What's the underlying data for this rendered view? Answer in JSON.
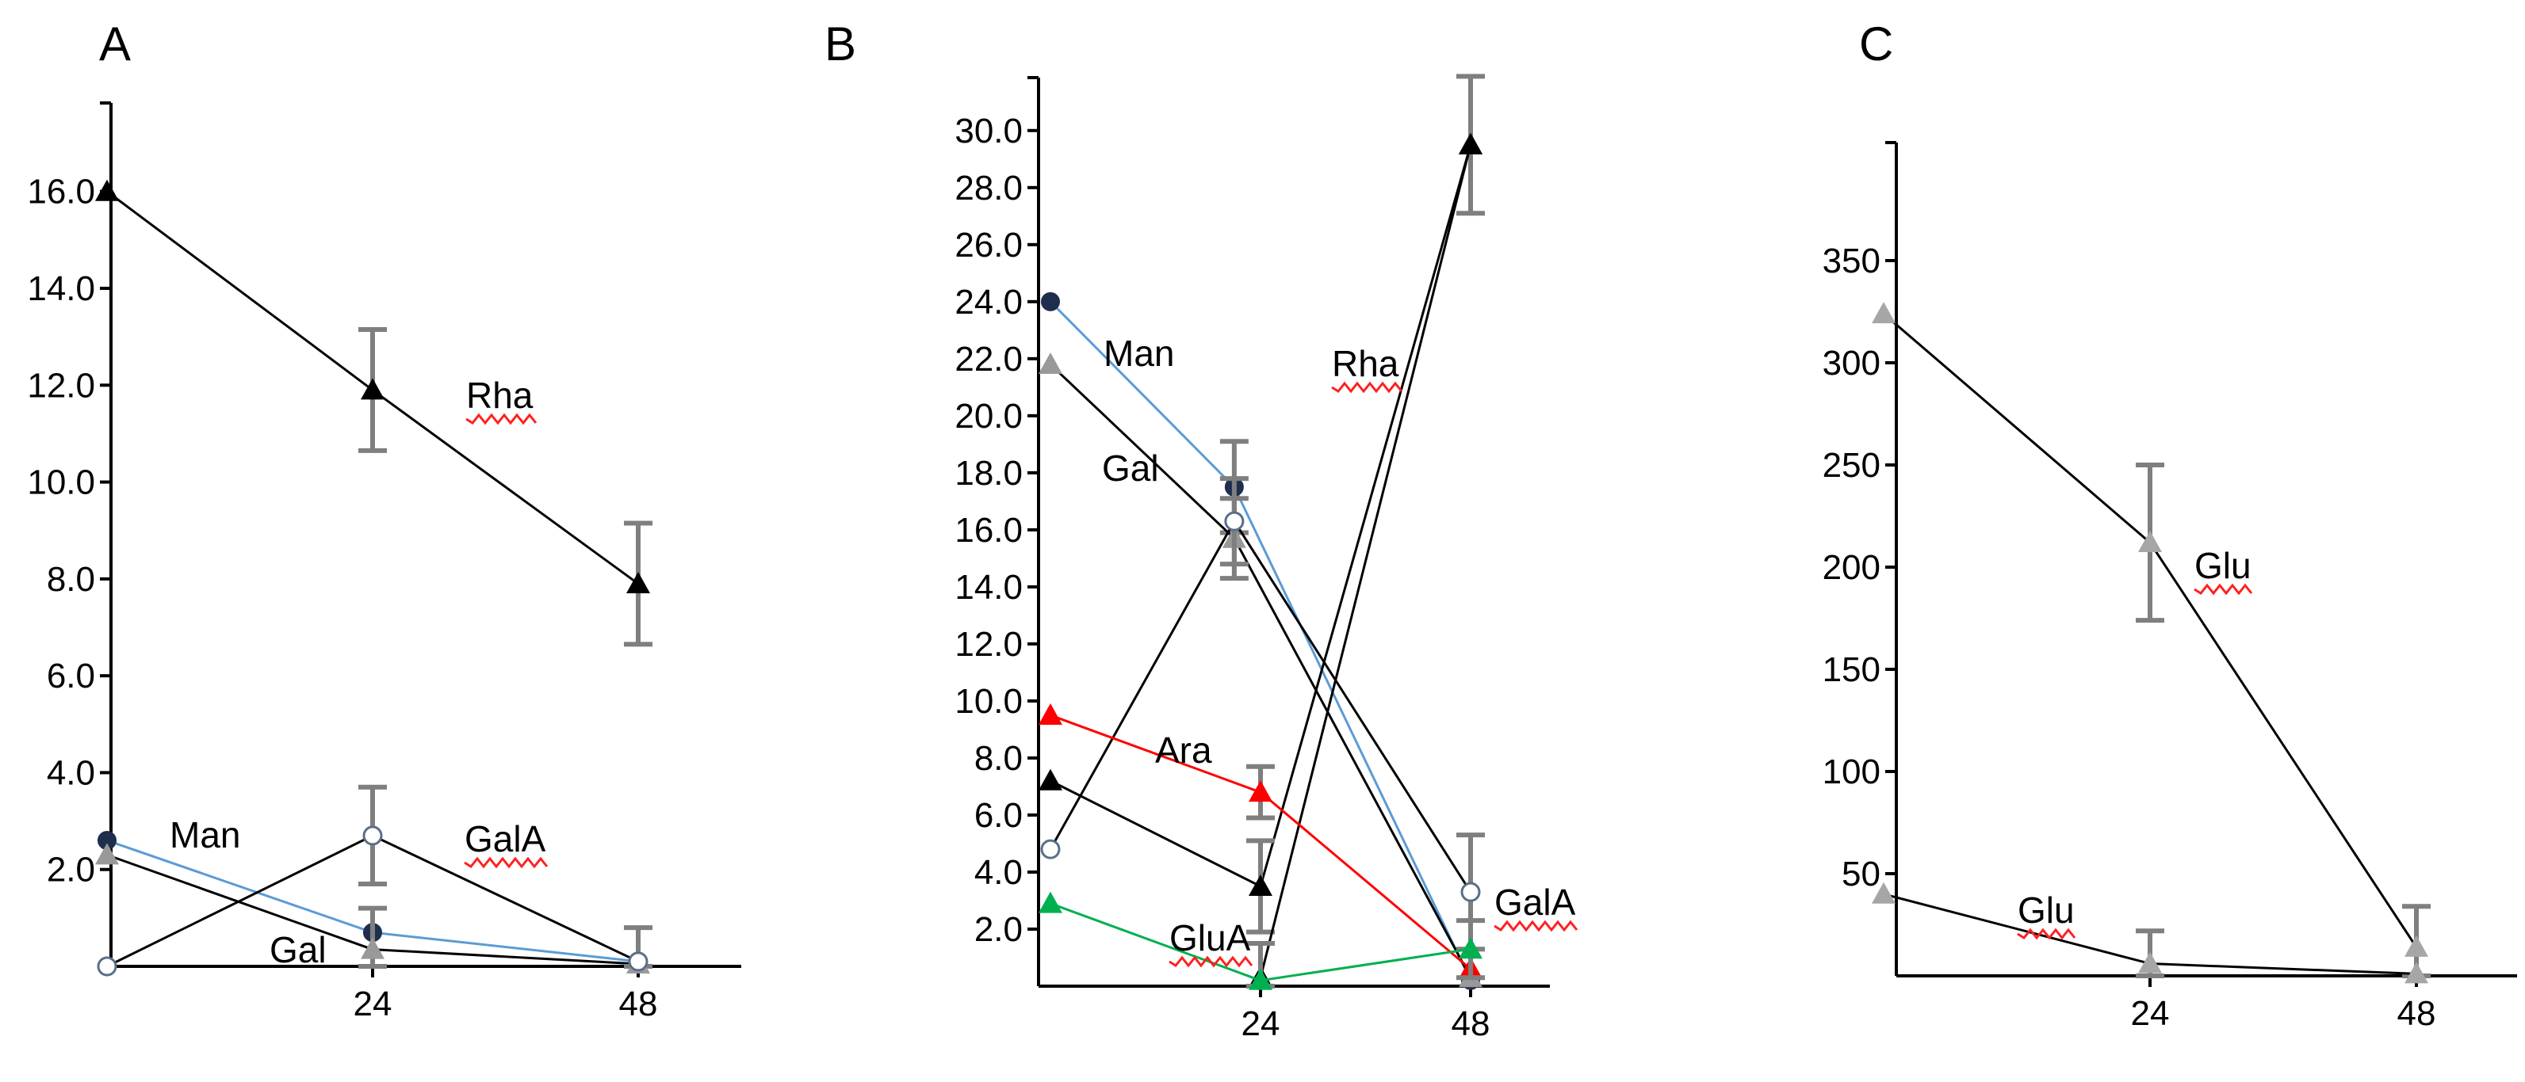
{
  "chart_data": [
    {
      "panel": "A",
      "type": "line",
      "x_ticks": [
        "24",
        "48"
      ],
      "y_ticks": [
        "2.0",
        "4.0",
        "6.0",
        "8.0",
        "10.0",
        "12.0",
        "14.0",
        "16.0"
      ],
      "ylim": [
        0,
        17.5
      ],
      "xlim": [
        0,
        58
      ],
      "series": [
        {
          "name": "Rha",
          "label": "Rha",
          "color": "#000000",
          "line_color": "#000000",
          "marker": "triangle",
          "x": [
            0,
            24,
            48
          ],
          "values": [
            16.0,
            11.9,
            7.9
          ],
          "error": [
            null,
            1.25,
            1.25
          ],
          "label_squiggle": true
        },
        {
          "name": "Man",
          "label": "Man",
          "color": "#000000",
          "line_color": "#5b9bd5",
          "marker": "circle",
          "x": [
            0,
            24,
            48
          ],
          "values": [
            2.6,
            0.7,
            0.1
          ],
          "error": [
            null,
            null,
            null
          ],
          "label_squiggle": false
        },
        {
          "name": "Gal",
          "label": "Gal",
          "color": "#999999",
          "line_color": "#000000",
          "marker": "triangle",
          "x": [
            0,
            24,
            48
          ],
          "values": [
            2.3,
            0.35,
            0.05
          ],
          "error": [
            null,
            0.85,
            0.75
          ],
          "label_squiggle": false
        },
        {
          "name": "GalA",
          "label": "GalA",
          "color": "#ffffff",
          "line_color": "#000000",
          "marker": "open-circle",
          "x": [
            0,
            24,
            48
          ],
          "values": [
            0.0,
            2.7,
            0.1
          ],
          "error": [
            null,
            1.0,
            null
          ],
          "label_squiggle": true
        }
      ]
    },
    {
      "panel": "B",
      "type": "line",
      "x_ticks": [
        "24",
        "48"
      ],
      "y_ticks": [
        "2.0",
        "4.0",
        "6.0",
        "8.0",
        "10.0",
        "12.0",
        "14.0",
        "16.0",
        "18.0",
        "20.0",
        "22.0",
        "24.0",
        "26.0",
        "28.0",
        "30.0"
      ],
      "ylim": [
        0,
        31.3
      ],
      "xlim": [
        0,
        58
      ],
      "series": [
        {
          "name": "Man",
          "label": "Man",
          "color": "#5b9bd5",
          "line_color": "#5b9bd5",
          "marker": "circle",
          "x": [
            0,
            21,
            48
          ],
          "values": [
            24.0,
            17.5,
            0.2
          ],
          "error": [
            null,
            1.6,
            null
          ],
          "label_squiggle": false
        },
        {
          "name": "Gal",
          "label": "Gal",
          "color": "#999999",
          "line_color": "#000000",
          "marker": "triangle",
          "x": [
            0,
            21,
            48
          ],
          "values": [
            21.8,
            15.7,
            0.3
          ],
          "error": [
            null,
            1.4,
            null
          ],
          "label_squiggle": false
        },
        {
          "name": "Rha",
          "label": "Rha",
          "color": "#000000",
          "line_color": "#000000",
          "marker": "triangle",
          "x": [
            0,
            24,
            48
          ],
          "values": [
            7.2,
            3.5,
            29.5
          ],
          "error": [
            null,
            1.6,
            2.4
          ],
          "label_squiggle": true
        },
        {
          "name": "Rha-early",
          "label": "",
          "color": "#000000",
          "line_color": "#000000",
          "marker": "triangle",
          "x": [
            24,
            48
          ],
          "values": [
            0.3,
            29.5
          ],
          "error": [
            null,
            null
          ],
          "label_squiggle": false
        },
        {
          "name": "GalA",
          "label": "GalA",
          "color": "#ffffff",
          "line_color": "#000000",
          "marker": "open-circle",
          "x": [
            0,
            21,
            48
          ],
          "values": [
            4.8,
            16.3,
            3.3
          ],
          "error": [
            null,
            1.5,
            2.0
          ],
          "label_squiggle": true
        },
        {
          "name": "Ara",
          "label": "Ara",
          "color": "#ff0000",
          "line_color": "#ff0000",
          "marker": "triangle",
          "x": [
            0,
            24,
            48
          ],
          "values": [
            9.5,
            6.8,
            0.6
          ],
          "error": [
            null,
            0.9,
            null
          ],
          "label_squiggle": false
        },
        {
          "name": "GluA",
          "label": "GluA",
          "color": "#00b050",
          "line_color": "#00b050",
          "marker": "triangle",
          "x": [
            0,
            24,
            48
          ],
          "values": [
            2.9,
            0.2,
            1.3
          ],
          "error": [
            null,
            1.3,
            1.0
          ],
          "label_squiggle": true
        }
      ]
    },
    {
      "panel": "C",
      "type": "line",
      "x_ticks": [
        "24",
        "48"
      ],
      "y_ticks": [
        "50",
        "100",
        "150",
        "200",
        "250",
        "300",
        "350"
      ],
      "ylim": [
        0,
        400
      ],
      "xlim": [
        0,
        58
      ],
      "series": [
        {
          "name": "Glu",
          "label": "Glu",
          "color": "#a6a6a6",
          "line_color": "#000000",
          "marker": "triangle",
          "x": [
            0,
            24,
            48
          ],
          "values": [
            324,
            212,
            14
          ],
          "error": [
            null,
            38,
            20
          ],
          "label_squiggle": true
        },
        {
          "name": "Glu-low",
          "label": "Glu",
          "color": "#a6a6a6",
          "line_color": "#000000",
          "marker": "triangle",
          "x": [
            0,
            24,
            48
          ],
          "values": [
            40,
            6,
            1
          ],
          "error": [
            null,
            16,
            null
          ],
          "label_squiggle": true
        }
      ]
    }
  ]
}
